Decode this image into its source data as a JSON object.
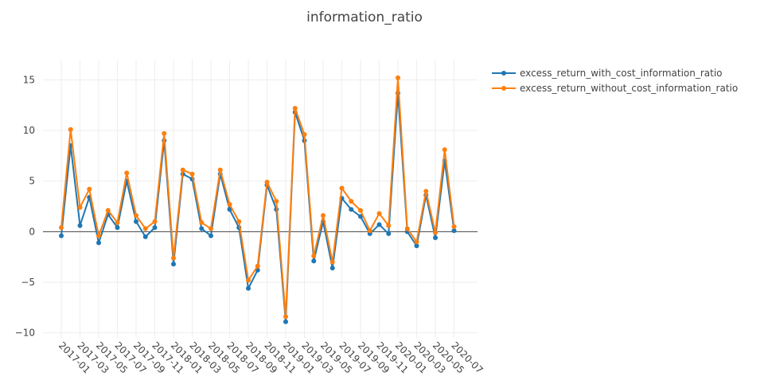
{
  "chart_data": {
    "type": "line",
    "title": "information_ratio",
    "xlabel": "",
    "ylabel": "",
    "x_tick_labels": [
      "2017-01",
      "2017-03",
      "2017-05",
      "2017-07",
      "2017-09",
      "2017-11",
      "2018-01",
      "2018-03",
      "2018-05",
      "2018-07",
      "2018-09",
      "2018-11",
      "2019-01",
      "2019-03",
      "2019-05",
      "2019-07",
      "2019-09",
      "2019-11",
      "2020-01",
      "2020-03",
      "2020-05",
      "2020-07"
    ],
    "y_ticks": [
      -10,
      -5,
      0,
      5,
      10,
      15
    ],
    "y_tick_labels": [
      "−10",
      "−5",
      "0",
      "5",
      "10",
      "15"
    ],
    "ylim": [
      -10.5,
      17
    ],
    "grid": true,
    "legend_position": "top-right",
    "x": [
      "2017-01",
      "2017-02",
      "2017-03",
      "2017-04",
      "2017-05",
      "2017-06",
      "2017-07",
      "2017-08",
      "2017-09",
      "2017-10",
      "2017-11",
      "2017-12",
      "2018-01",
      "2018-02",
      "2018-03",
      "2018-04",
      "2018-05",
      "2018-06",
      "2018-07",
      "2018-08",
      "2018-09",
      "2018-10",
      "2018-11",
      "2018-12",
      "2019-01",
      "2019-02",
      "2019-03",
      "2019-04",
      "2019-05",
      "2019-06",
      "2019-07",
      "2019-08",
      "2019-09",
      "2019-10",
      "2019-11",
      "2019-12",
      "2020-01",
      "2020-02",
      "2020-03",
      "2020-04",
      "2020-05",
      "2020-06",
      "2020-07"
    ],
    "series": [
      {
        "name": "excess_return_with_cost_information_ratio",
        "color": "#1f77b4",
        "values": [
          -0.4,
          8.5,
          0.6,
          3.4,
          -1.1,
          1.7,
          0.4,
          5.0,
          1.0,
          -0.5,
          0.4,
          9.0,
          -3.2,
          5.7,
          5.2,
          0.3,
          -0.4,
          5.7,
          2.2,
          0.4,
          -5.6,
          -3.8,
          4.6,
          2.2,
          -8.9,
          11.8,
          9.0,
          -2.9,
          1.0,
          -3.6,
          3.3,
          2.2,
          1.5,
          -0.2,
          0.7,
          -0.2,
          13.7,
          0.0,
          -1.4,
          3.6,
          -0.6,
          7.0,
          0.1
        ]
      },
      {
        "name": "excess_return_without_cost_information_ratio",
        "color": "#ff7f0e",
        "values": [
          0.4,
          10.1,
          2.4,
          4.2,
          -0.4,
          2.1,
          0.9,
          5.8,
          1.6,
          0.3,
          1.0,
          9.7,
          -2.6,
          6.1,
          5.7,
          0.9,
          0.3,
          6.1,
          2.7,
          1.0,
          -4.8,
          -3.4,
          4.9,
          3.0,
          -8.4,
          12.2,
          9.6,
          -2.4,
          1.6,
          -3.0,
          4.3,
          3.0,
          2.1,
          0.1,
          1.8,
          0.6,
          15.2,
          0.3,
          -1.0,
          4.0,
          -0.1,
          8.1,
          0.5
        ]
      }
    ]
  }
}
